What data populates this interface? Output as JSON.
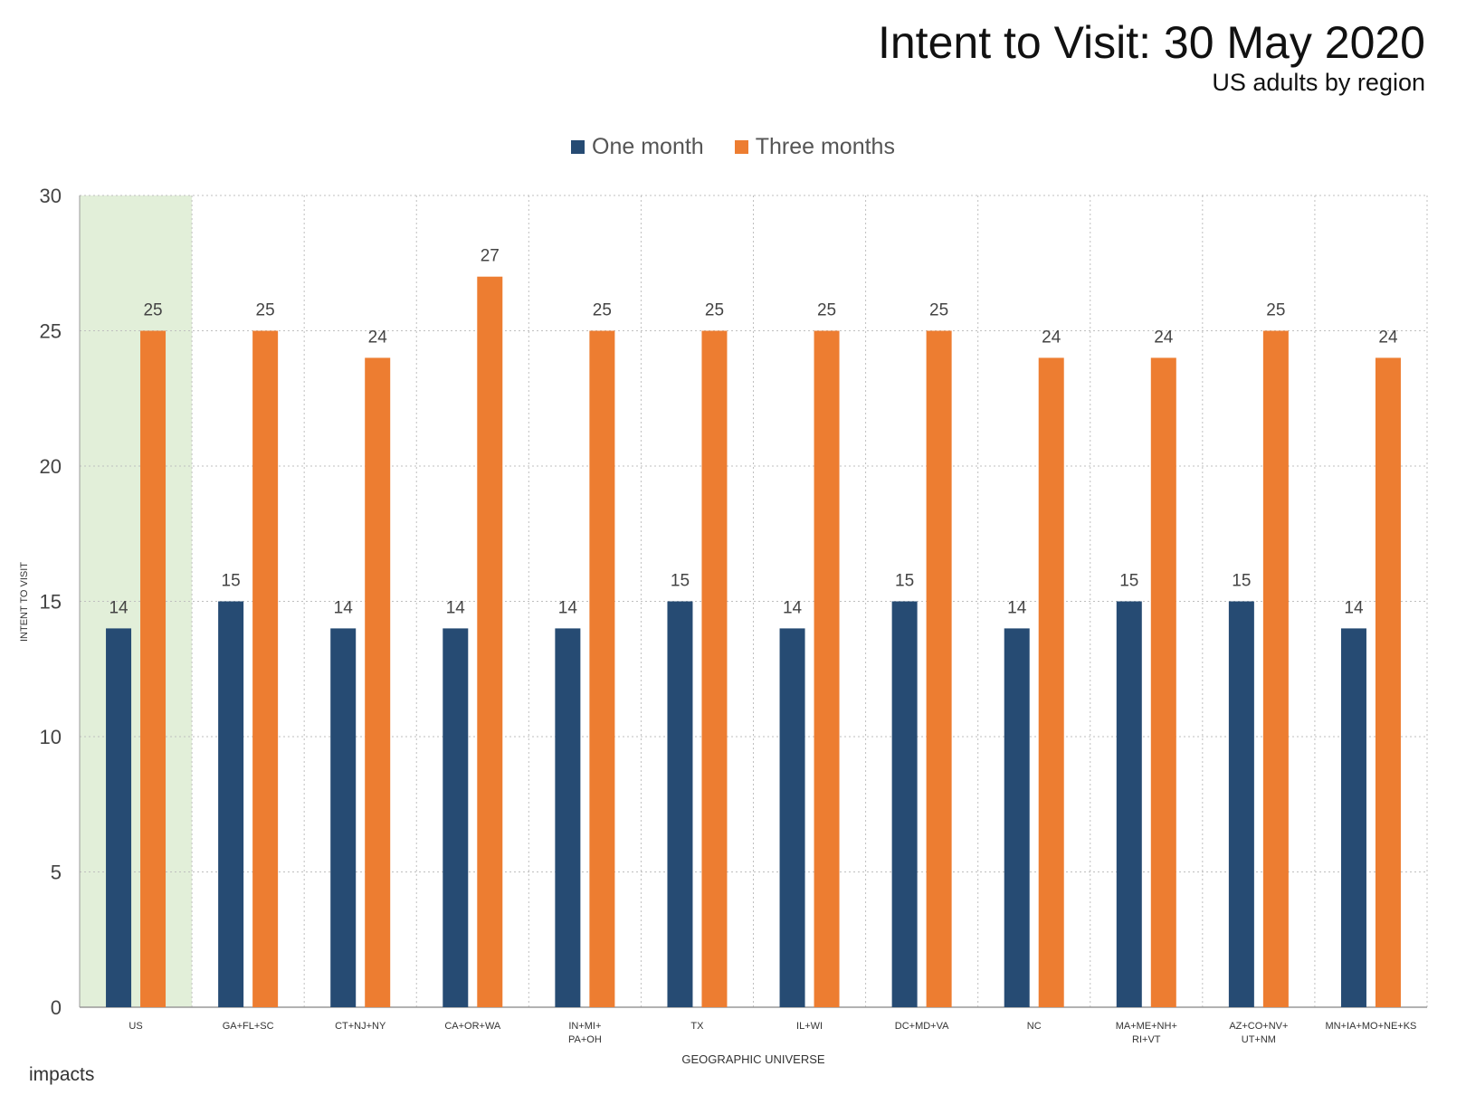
{
  "title": "Intent to Visit: 30 May 2020",
  "subtitle": "US adults by region",
  "logo_text": "impacts",
  "colors": {
    "one_month": "#264B73",
    "three_months": "#ED7D31",
    "highlight": "#E2EFD9",
    "grid": "#BFBFBF"
  },
  "chart_data": {
    "type": "bar",
    "categories": [
      [
        "US"
      ],
      [
        "GA+FL+SC"
      ],
      [
        "CT+NJ+NY"
      ],
      [
        "CA+OR+WA"
      ],
      [
        "IN+MI+",
        "PA+OH"
      ],
      [
        "TX"
      ],
      [
        "IL+WI"
      ],
      [
        "DC+MD+VA"
      ],
      [
        "NC"
      ],
      [
        "MA+ME+NH+",
        "RI+VT"
      ],
      [
        "AZ+CO+NV+",
        "UT+NM"
      ],
      [
        "MN+IA+MO+NE+KS"
      ]
    ],
    "series": [
      {
        "name": "One month",
        "values": [
          14,
          15,
          14,
          14,
          14,
          15,
          14,
          15,
          14,
          15,
          15,
          14
        ]
      },
      {
        "name": "Three months",
        "values": [
          25,
          25,
          24,
          27,
          25,
          25,
          25,
          25,
          24,
          24,
          25,
          24
        ]
      }
    ],
    "xlabel": "GEOGRAPHIC UNIVERSE",
    "ylabel": "INTENT TO VISIT",
    "ylim": [
      0,
      30
    ],
    "yticks": [
      0,
      5,
      10,
      15,
      20,
      25,
      30
    ],
    "highlighted_category": "US",
    "legend_position": "top-center",
    "grid": true
  }
}
